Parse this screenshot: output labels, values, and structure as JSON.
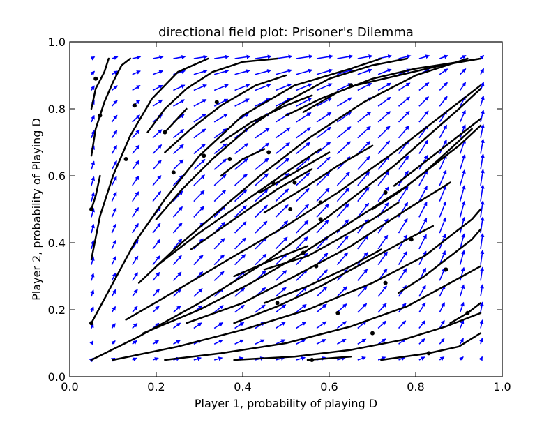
{
  "chart_data": {
    "type": "line",
    "title": "directional field plot: Prisoner's Dilemma",
    "xlabel": "Player 1, probability of playing D",
    "ylabel": "Player 2, probability of Playing D",
    "xlim": [
      0.0,
      1.0
    ],
    "ylim": [
      0.0,
      1.0
    ],
    "x_ticks": [
      "0.0",
      "0.2",
      "0.4",
      "0.6",
      "0.8",
      "1.0"
    ],
    "y_ticks": [
      "0.0",
      "0.2",
      "0.4",
      "0.6",
      "0.8",
      "1.0"
    ],
    "grid": false,
    "legend": "none",
    "colors": {
      "quiver": "#0000ff",
      "streamline": "#000000"
    },
    "quiver_grid": {
      "start": 0.05,
      "stop": 0.95,
      "count": 20
    },
    "streamlines": [
      {
        "points": [
          [
            0.05,
            0.05
          ],
          [
            0.16,
            0.12
          ],
          [
            0.3,
            0.22
          ],
          [
            0.45,
            0.34
          ],
          [
            0.6,
            0.48
          ],
          [
            0.75,
            0.63
          ],
          [
            0.9,
            0.8
          ],
          [
            0.95,
            0.86
          ]
        ]
      },
      {
        "points": [
          [
            0.1,
            0.05
          ],
          [
            0.25,
            0.09
          ],
          [
            0.4,
            0.14
          ],
          [
            0.55,
            0.2
          ],
          [
            0.7,
            0.28
          ],
          [
            0.82,
            0.36
          ],
          [
            0.93,
            0.47
          ],
          [
            0.95,
            0.5
          ]
        ]
      },
      {
        "points": [
          [
            0.22,
            0.05
          ],
          [
            0.35,
            0.07
          ],
          [
            0.5,
            0.1
          ],
          [
            0.65,
            0.15
          ],
          [
            0.78,
            0.21
          ],
          [
            0.88,
            0.28
          ],
          [
            0.95,
            0.33
          ]
        ]
      },
      {
        "points": [
          [
            0.38,
            0.05
          ],
          [
            0.52,
            0.06
          ],
          [
            0.65,
            0.08
          ],
          [
            0.77,
            0.11
          ],
          [
            0.87,
            0.15
          ],
          [
            0.95,
            0.19
          ]
        ]
      },
      {
        "points": [
          [
            0.55,
            0.05
          ],
          [
            0.65,
            0.06
          ]
        ]
      },
      {
        "points": [
          [
            0.72,
            0.05
          ],
          [
            0.83,
            0.07
          ],
          [
            0.9,
            0.09
          ],
          [
            0.95,
            0.13
          ]
        ]
      },
      {
        "points": [
          [
            0.88,
            0.16
          ],
          [
            0.92,
            0.19
          ],
          [
            0.95,
            0.22
          ]
        ]
      },
      {
        "points": [
          [
            0.05,
            0.16
          ],
          [
            0.1,
            0.28
          ],
          [
            0.15,
            0.4
          ],
          [
            0.22,
            0.53
          ],
          [
            0.3,
            0.66
          ],
          [
            0.4,
            0.78
          ],
          [
            0.52,
            0.87
          ],
          [
            0.65,
            0.92
          ],
          [
            0.72,
            0.95
          ]
        ]
      },
      {
        "points": [
          [
            0.05,
            0.35
          ],
          [
            0.07,
            0.48
          ],
          [
            0.1,
            0.6
          ],
          [
            0.14,
            0.72
          ],
          [
            0.19,
            0.83
          ],
          [
            0.25,
            0.91
          ],
          [
            0.32,
            0.95
          ]
        ]
      },
      {
        "points": [
          [
            0.05,
            0.5
          ],
          [
            0.06,
            0.54
          ],
          [
            0.07,
            0.6
          ]
        ]
      },
      {
        "points": [
          [
            0.05,
            0.66
          ],
          [
            0.06,
            0.74
          ],
          [
            0.08,
            0.82
          ],
          [
            0.1,
            0.88
          ],
          [
            0.12,
            0.93
          ],
          [
            0.14,
            0.95
          ]
        ]
      },
      {
        "points": [
          [
            0.05,
            0.8
          ],
          [
            0.06,
            0.86
          ],
          [
            0.08,
            0.91
          ],
          [
            0.09,
            0.95
          ]
        ]
      },
      {
        "points": [
          [
            0.13,
            0.17
          ],
          [
            0.25,
            0.26
          ],
          [
            0.38,
            0.36
          ],
          [
            0.5,
            0.45
          ],
          [
            0.62,
            0.55
          ],
          [
            0.75,
            0.67
          ],
          [
            0.88,
            0.8
          ],
          [
            0.95,
            0.87
          ]
        ]
      },
      {
        "points": [
          [
            0.16,
            0.28
          ],
          [
            0.25,
            0.39
          ],
          [
            0.34,
            0.49
          ],
          [
            0.44,
            0.6
          ],
          [
            0.55,
            0.71
          ],
          [
            0.68,
            0.82
          ],
          [
            0.8,
            0.9
          ],
          [
            0.92,
            0.95
          ]
        ]
      },
      {
        "points": [
          [
            0.2,
            0.47
          ],
          [
            0.26,
            0.56
          ],
          [
            0.33,
            0.65
          ],
          [
            0.41,
            0.74
          ],
          [
            0.5,
            0.82
          ],
          [
            0.6,
            0.89
          ],
          [
            0.7,
            0.93
          ],
          [
            0.78,
            0.95
          ]
        ]
      },
      {
        "points": [
          [
            0.18,
            0.73
          ],
          [
            0.22,
            0.8
          ],
          [
            0.27,
            0.86
          ],
          [
            0.33,
            0.91
          ],
          [
            0.4,
            0.94
          ],
          [
            0.48,
            0.95
          ]
        ]
      },
      {
        "points": [
          [
            0.22,
            0.73
          ],
          [
            0.27,
            0.8
          ]
        ]
      },
      {
        "points": [
          [
            0.22,
            0.67
          ],
          [
            0.28,
            0.74
          ],
          [
            0.35,
            0.81
          ],
          [
            0.43,
            0.87
          ],
          [
            0.5,
            0.9
          ]
        ]
      },
      {
        "points": [
          [
            0.17,
            0.13
          ],
          [
            0.3,
            0.2
          ],
          [
            0.42,
            0.28
          ],
          [
            0.54,
            0.37
          ],
          [
            0.66,
            0.47
          ],
          [
            0.78,
            0.57
          ],
          [
            0.9,
            0.69
          ],
          [
            0.95,
            0.75
          ]
        ]
      },
      {
        "points": [
          [
            0.27,
            0.16
          ],
          [
            0.4,
            0.22
          ],
          [
            0.52,
            0.3
          ],
          [
            0.65,
            0.39
          ],
          [
            0.78,
            0.5
          ],
          [
            0.88,
            0.58
          ]
        ]
      },
      {
        "points": [
          [
            0.38,
            0.16
          ],
          [
            0.48,
            0.21
          ],
          [
            0.58,
            0.27
          ],
          [
            0.68,
            0.34
          ],
          [
            0.78,
            0.41
          ],
          [
            0.84,
            0.45
          ]
        ]
      },
      {
        "points": [
          [
            0.45,
            0.22
          ],
          [
            0.55,
            0.27
          ],
          [
            0.65,
            0.33
          ],
          [
            0.72,
            0.38
          ]
        ]
      },
      {
        "points": [
          [
            0.45,
            0.32
          ],
          [
            0.55,
            0.36
          ],
          [
            0.62,
            0.41
          ],
          [
            0.7,
            0.47
          ],
          [
            0.76,
            0.52
          ]
        ]
      },
      {
        "points": [
          [
            0.38,
            0.3
          ],
          [
            0.47,
            0.35
          ],
          [
            0.55,
            0.39
          ]
        ]
      },
      {
        "points": [
          [
            0.2,
            0.33
          ],
          [
            0.3,
            0.43
          ],
          [
            0.4,
            0.52
          ],
          [
            0.5,
            0.61
          ],
          [
            0.58,
            0.68
          ]
        ]
      },
      {
        "points": [
          [
            0.28,
            0.38
          ],
          [
            0.38,
            0.47
          ],
          [
            0.48,
            0.56
          ],
          [
            0.56,
            0.62
          ]
        ]
      },
      {
        "points": [
          [
            0.35,
            0.6
          ],
          [
            0.4,
            0.65
          ],
          [
            0.45,
            0.68
          ]
        ]
      },
      {
        "points": [
          [
            0.45,
            0.49
          ],
          [
            0.55,
            0.57
          ],
          [
            0.62,
            0.63
          ],
          [
            0.7,
            0.69
          ]
        ]
      },
      {
        "points": [
          [
            0.44,
            0.55
          ],
          [
            0.52,
            0.61
          ],
          [
            0.6,
            0.67
          ]
        ]
      },
      {
        "points": [
          [
            0.35,
            0.7
          ],
          [
            0.42,
            0.76
          ],
          [
            0.5,
            0.81
          ],
          [
            0.56,
            0.84
          ]
        ]
      },
      {
        "points": [
          [
            0.5,
            0.78
          ],
          [
            0.58,
            0.83
          ],
          [
            0.66,
            0.87
          ],
          [
            0.76,
            0.9
          ],
          [
            0.86,
            0.93
          ],
          [
            0.95,
            0.95
          ]
        ]
      },
      {
        "points": [
          [
            0.54,
            0.79
          ],
          [
            0.62,
            0.85
          ],
          [
            0.7,
            0.89
          ],
          [
            0.8,
            0.92
          ],
          [
            0.9,
            0.94
          ],
          [
            0.95,
            0.95
          ]
        ]
      },
      {
        "points": [
          [
            0.7,
            0.5
          ],
          [
            0.76,
            0.55
          ],
          [
            0.82,
            0.61
          ],
          [
            0.88,
            0.68
          ],
          [
            0.93,
            0.74
          ]
        ]
      },
      {
        "points": [
          [
            0.76,
            0.25
          ],
          [
            0.82,
            0.3
          ],
          [
            0.88,
            0.36
          ],
          [
            0.93,
            0.41
          ],
          [
            0.95,
            0.44
          ]
        ]
      },
      {
        "points": [
          [
            0.75,
            0.57
          ],
          [
            0.82,
            0.64
          ],
          [
            0.88,
            0.7
          ],
          [
            0.95,
            0.77
          ]
        ]
      }
    ],
    "markers": [
      [
        0.05,
        0.5
      ],
      [
        0.07,
        0.78
      ],
      [
        0.06,
        0.89
      ],
      [
        0.15,
        0.81
      ],
      [
        0.13,
        0.65
      ],
      [
        0.22,
        0.73
      ],
      [
        0.24,
        0.61
      ],
      [
        0.31,
        0.66
      ],
      [
        0.34,
        0.82
      ],
      [
        0.37,
        0.65
      ],
      [
        0.46,
        0.67
      ],
      [
        0.47,
        0.58
      ],
      [
        0.51,
        0.5
      ],
      [
        0.52,
        0.58
      ],
      [
        0.58,
        0.52
      ],
      [
        0.58,
        0.47
      ],
      [
        0.54,
        0.37
      ],
      [
        0.57,
        0.33
      ],
      [
        0.48,
        0.22
      ],
      [
        0.62,
        0.19
      ],
      [
        0.7,
        0.13
      ],
      [
        0.56,
        0.05
      ],
      [
        0.73,
        0.28
      ],
      [
        0.79,
        0.41
      ],
      [
        0.73,
        0.55
      ],
      [
        0.65,
        0.87
      ],
      [
        0.83,
        0.07
      ],
      [
        0.87,
        0.32
      ],
      [
        0.92,
        0.19
      ],
      [
        0.05,
        0.16
      ]
    ]
  }
}
